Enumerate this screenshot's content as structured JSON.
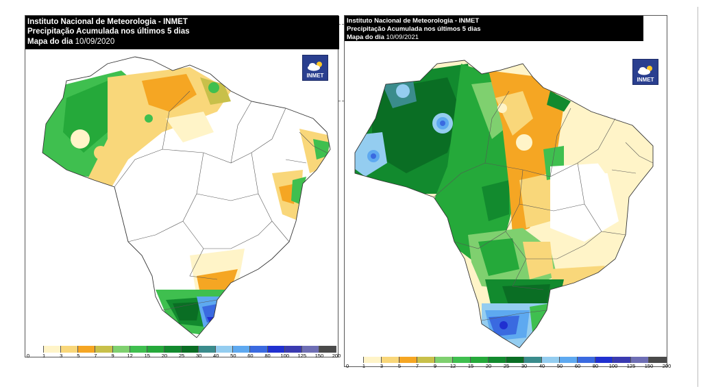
{
  "maps": [
    {
      "title_line1": "Instituto Nacional de Meteorologia - INMET",
      "title_line2": "Precipitação Acumulada nos últimos 5 dias",
      "title_line3_prefix": "Mapa do dia",
      "date": "10/09/2020",
      "logo_text": "INMET"
    },
    {
      "title_line1": "Instituto Nacional de Meteorologia - INMET",
      "title_line2": "Precipitação Acumulada nos últimos 5 dias",
      "title_line3_prefix": "Mapa do dia",
      "date": "10/09/2021",
      "logo_text": "INMET"
    }
  ],
  "legend": {
    "labels": [
      "0",
      "1",
      "3",
      "5",
      "7",
      "9",
      "12",
      "15",
      "20",
      "25",
      "30",
      "40",
      "50",
      "60",
      "80",
      "100",
      "125",
      "150",
      "200"
    ],
    "colors": [
      "#ffffff",
      "#fff4c8",
      "#f9d77a",
      "#f5a623",
      "#c8c04a",
      "#7fd06f",
      "#3fbf4f",
      "#25a93a",
      "#128a2e",
      "#0a6e24",
      "#3a8c8c",
      "#94cdf0",
      "#5ea9f0",
      "#3a6ae0",
      "#2030d0",
      "#3a3ab0",
      "#6e6eb4",
      "#4a4a4a"
    ]
  },
  "colors": {
    "header_bg": "#000000",
    "header_text": "#ffffff",
    "logo_bg": "#2a3f8f",
    "state_borders": "#555555"
  }
}
